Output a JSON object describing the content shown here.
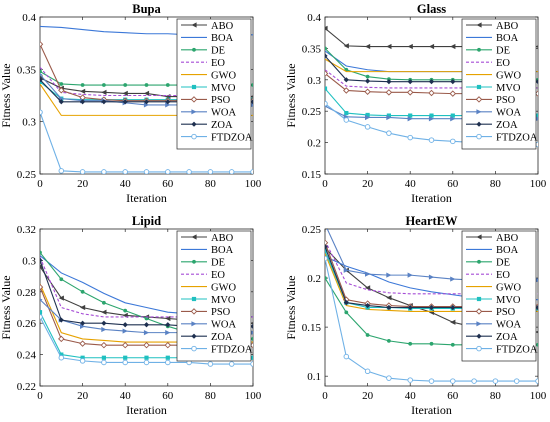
{
  "styles": {
    "ABO": {
      "color": "#404040",
      "marker": "tri-left"
    },
    "BOA": {
      "color": "#3c78d8",
      "marker": "none"
    },
    "DE": {
      "color": "#2ca56e",
      "marker": "dot"
    },
    "EO": {
      "color": "#a64dd6",
      "marker": "none",
      "dash": "3,2"
    },
    "GWO": {
      "color": "#e6a200",
      "marker": "none"
    },
    "MVO": {
      "color": "#1fc0c0",
      "marker": "square"
    },
    "PSO": {
      "color": "#9a5a4a",
      "marker": "diamond-open"
    },
    "WOA": {
      "color": "#5a82c4",
      "marker": "tri-right"
    },
    "ZOA": {
      "color": "#1f3050",
      "marker": "diamond"
    },
    "FTDZOA": {
      "color": "#6fb1e6",
      "marker": "circle-open"
    }
  },
  "chart_data": [
    {
      "type": "line",
      "title": "Bupa",
      "xlabel": "Iteration",
      "ylabel": "Fitness Value",
      "xlim": [
        0,
        100
      ],
      "ylim": [
        0.25,
        0.4
      ],
      "xticks": [
        "0",
        "20",
        "40",
        "60",
        "80",
        "100"
      ],
      "yticks": [
        "0.25",
        "0.3",
        "0.35",
        "0.4"
      ],
      "legend": "top-right",
      "x": [
        0,
        10,
        20,
        30,
        40,
        50,
        60,
        70,
        80,
        90,
        100
      ],
      "series": [
        {
          "name": "ABO",
          "values": [
            0.342,
            0.332,
            0.329,
            0.328,
            0.327,
            0.327,
            0.324,
            0.324,
            0.324,
            0.324,
            0.324
          ]
        },
        {
          "name": "BOA",
          "values": [
            0.391,
            0.39,
            0.388,
            0.386,
            0.385,
            0.384,
            0.384,
            0.383,
            0.383,
            0.383,
            0.383
          ]
        },
        {
          "name": "DE",
          "values": [
            0.348,
            0.336,
            0.335,
            0.335,
            0.335,
            0.335,
            0.335,
            0.335,
            0.335,
            0.335,
            0.335
          ]
        },
        {
          "name": "EO",
          "values": [
            0.352,
            0.328,
            0.326,
            0.325,
            0.325,
            0.325,
            0.325,
            0.325,
            0.325,
            0.325,
            0.325
          ]
        },
        {
          "name": "GWO",
          "values": [
            0.336,
            0.306,
            0.306,
            0.306,
            0.306,
            0.306,
            0.306,
            0.306,
            0.306,
            0.306,
            0.306
          ]
        },
        {
          "name": "MVO",
          "values": [
            0.338,
            0.322,
            0.321,
            0.321,
            0.321,
            0.321,
            0.321,
            0.321,
            0.321,
            0.321,
            0.321
          ]
        },
        {
          "name": "PSO",
          "values": [
            0.374,
            0.33,
            0.323,
            0.321,
            0.32,
            0.32,
            0.32,
            0.32,
            0.32,
            0.32,
            0.32
          ]
        },
        {
          "name": "WOA",
          "values": [
            0.345,
            0.322,
            0.32,
            0.32,
            0.318,
            0.316,
            0.316,
            0.316,
            0.316,
            0.316,
            0.316
          ]
        },
        {
          "name": "ZOA",
          "values": [
            0.34,
            0.319,
            0.319,
            0.319,
            0.319,
            0.319,
            0.319,
            0.319,
            0.319,
            0.319,
            0.319
          ]
        },
        {
          "name": "FTDZOA",
          "values": [
            0.309,
            0.253,
            0.252,
            0.252,
            0.252,
            0.252,
            0.252,
            0.252,
            0.252,
            0.252,
            0.252
          ]
        }
      ]
    },
    {
      "type": "line",
      "title": "Glass",
      "xlabel": "Iteration",
      "ylabel": "Fitness Value",
      "xlim": [
        0,
        100
      ],
      "ylim": [
        0.15,
        0.4
      ],
      "xticks": [
        "0",
        "20",
        "40",
        "60",
        "80",
        "100"
      ],
      "yticks": [
        "0.15",
        "0.2",
        "0.25",
        "0.3",
        "0.35",
        "0.4"
      ],
      "legend": "top-right",
      "x": [
        0,
        10,
        20,
        30,
        40,
        50,
        60,
        70,
        80,
        90,
        100
      ],
      "series": [
        {
          "name": "ABO",
          "values": [
            0.382,
            0.354,
            0.353,
            0.353,
            0.353,
            0.353,
            0.353,
            0.353,
            0.353,
            0.353,
            0.353
          ]
        },
        {
          "name": "BOA",
          "values": [
            0.346,
            0.322,
            0.316,
            0.313,
            0.313,
            0.313,
            0.313,
            0.313,
            0.313,
            0.313,
            0.313
          ]
        },
        {
          "name": "DE",
          "values": [
            0.35,
            0.316,
            0.305,
            0.301,
            0.3,
            0.3,
            0.3,
            0.3,
            0.3,
            0.3,
            0.3
          ]
        },
        {
          "name": "EO",
          "values": [
            0.316,
            0.29,
            0.288,
            0.287,
            0.287,
            0.287,
            0.287,
            0.287,
            0.287,
            0.287,
            0.287
          ]
        },
        {
          "name": "GWO",
          "values": [
            0.333,
            0.313,
            0.313,
            0.313,
            0.313,
            0.313,
            0.313,
            0.313,
            0.313,
            0.313,
            0.313
          ]
        },
        {
          "name": "MVO",
          "values": [
            0.286,
            0.247,
            0.244,
            0.243,
            0.243,
            0.243,
            0.243,
            0.243,
            0.243,
            0.243,
            0.243
          ]
        },
        {
          "name": "PSO",
          "values": [
            0.31,
            0.283,
            0.281,
            0.28,
            0.28,
            0.279,
            0.278,
            0.278,
            0.278,
            0.278,
            0.278
          ]
        },
        {
          "name": "WOA",
          "values": [
            0.258,
            0.241,
            0.24,
            0.24,
            0.238,
            0.238,
            0.238,
            0.238,
            0.238,
            0.238,
            0.238
          ]
        },
        {
          "name": "ZOA",
          "values": [
            0.338,
            0.3,
            0.298,
            0.297,
            0.297,
            0.297,
            0.297,
            0.297,
            0.297,
            0.297,
            0.297
          ]
        },
        {
          "name": "FTDZOA",
          "values": [
            0.262,
            0.236,
            0.225,
            0.215,
            0.208,
            0.204,
            0.202,
            0.2,
            0.199,
            0.198,
            0.197
          ]
        }
      ]
    },
    {
      "type": "line",
      "title": "Lipid",
      "xlabel": "Iteration",
      "ylabel": "Fitness Value",
      "xlim": [
        0,
        100
      ],
      "ylim": [
        0.22,
        0.32
      ],
      "xticks": [
        "0",
        "20",
        "40",
        "60",
        "80",
        "100"
      ],
      "yticks": [
        "0.22",
        "0.24",
        "0.26",
        "0.28",
        "0.3",
        "0.32"
      ],
      "legend": "top-right",
      "x": [
        0,
        10,
        20,
        30,
        40,
        50,
        60,
        70,
        80,
        90,
        100
      ],
      "series": [
        {
          "name": "ABO",
          "values": [
            0.296,
            0.276,
            0.27,
            0.267,
            0.265,
            0.264,
            0.263,
            0.262,
            0.261,
            0.261,
            0.26
          ]
        },
        {
          "name": "BOA",
          "values": [
            0.303,
            0.292,
            0.286,
            0.279,
            0.273,
            0.27,
            0.267,
            0.266,
            0.264,
            0.264,
            0.264
          ]
        },
        {
          "name": "DE",
          "values": [
            0.305,
            0.288,
            0.28,
            0.273,
            0.268,
            0.263,
            0.258,
            0.254,
            0.252,
            0.251,
            0.25
          ]
        },
        {
          "name": "EO",
          "values": [
            0.302,
            0.27,
            0.266,
            0.264,
            0.264,
            0.264,
            0.264,
            0.264,
            0.264,
            0.264,
            0.264
          ]
        },
        {
          "name": "GWO",
          "values": [
            0.285,
            0.254,
            0.25,
            0.249,
            0.248,
            0.248,
            0.248,
            0.248,
            0.248,
            0.248,
            0.248
          ]
        },
        {
          "name": "MVO",
          "values": [
            0.267,
            0.24,
            0.238,
            0.238,
            0.238,
            0.238,
            0.238,
            0.238,
            0.238,
            0.238,
            0.238
          ]
        },
        {
          "name": "PSO",
          "values": [
            0.283,
            0.25,
            0.247,
            0.246,
            0.246,
            0.246,
            0.246,
            0.246,
            0.246,
            0.246,
            0.246
          ]
        },
        {
          "name": "WOA",
          "values": [
            0.275,
            0.262,
            0.258,
            0.256,
            0.255,
            0.254,
            0.254,
            0.254,
            0.254,
            0.254,
            0.254
          ]
        },
        {
          "name": "ZOA",
          "values": [
            0.3,
            0.262,
            0.26,
            0.26,
            0.259,
            0.259,
            0.259,
            0.258,
            0.258,
            0.258,
            0.258
          ]
        },
        {
          "name": "FTDZOA",
          "values": [
            0.264,
            0.238,
            0.236,
            0.235,
            0.235,
            0.235,
            0.235,
            0.235,
            0.234,
            0.234,
            0.234
          ]
        }
      ]
    },
    {
      "type": "line",
      "title": "HeartEW",
      "xlabel": "Iteration",
      "ylabel": "Fitness Value",
      "xlim": [
        0,
        100
      ],
      "ylim": [
        0.09,
        0.25
      ],
      "xticks": [
        "0",
        "20",
        "40",
        "60",
        "80",
        "100"
      ],
      "yticks": [
        "0.1",
        "0.15",
        "0.2",
        "0.25"
      ],
      "legend": "top-right",
      "x": [
        0,
        10,
        20,
        30,
        40,
        50,
        60,
        70,
        80,
        90,
        100
      ],
      "series": [
        {
          "name": "ABO",
          "values": [
            0.231,
            0.208,
            0.19,
            0.18,
            0.172,
            0.165,
            0.155,
            0.15,
            0.148,
            0.146,
            0.145
          ]
        },
        {
          "name": "BOA",
          "values": [
            0.222,
            0.212,
            0.205,
            0.196,
            0.19,
            0.186,
            0.183,
            0.18,
            0.178,
            0.178,
            0.178
          ]
        },
        {
          "name": "DE",
          "values": [
            0.2,
            0.165,
            0.142,
            0.136,
            0.133,
            0.133,
            0.132,
            0.132,
            0.132,
            0.132,
            0.132
          ]
        },
        {
          "name": "EO",
          "values": [
            0.238,
            0.195,
            0.188,
            0.185,
            0.184,
            0.184,
            0.184,
            0.184,
            0.184,
            0.184,
            0.184
          ]
        },
        {
          "name": "GWO",
          "values": [
            0.225,
            0.172,
            0.168,
            0.167,
            0.166,
            0.166,
            0.166,
            0.166,
            0.166,
            0.166,
            0.166
          ]
        },
        {
          "name": "MVO",
          "values": [
            0.228,
            0.175,
            0.17,
            0.17,
            0.169,
            0.169,
            0.169,
            0.169,
            0.169,
            0.169,
            0.169
          ]
        },
        {
          "name": "PSO",
          "values": [
            0.236,
            0.178,
            0.174,
            0.172,
            0.171,
            0.171,
            0.171,
            0.171,
            0.171,
            0.171,
            0.171
          ]
        },
        {
          "name": "WOA",
          "values": [
            0.255,
            0.208,
            0.204,
            0.203,
            0.203,
            0.201,
            0.199,
            0.198,
            0.198,
            0.198,
            0.198
          ]
        },
        {
          "name": "ZOA",
          "values": [
            0.232,
            0.175,
            0.172,
            0.17,
            0.17,
            0.17,
            0.17,
            0.17,
            0.17,
            0.17,
            0.17
          ]
        },
        {
          "name": "FTDZOA",
          "values": [
            0.22,
            0.12,
            0.105,
            0.098,
            0.096,
            0.095,
            0.095,
            0.095,
            0.095,
            0.095,
            0.095
          ]
        }
      ]
    }
  ]
}
